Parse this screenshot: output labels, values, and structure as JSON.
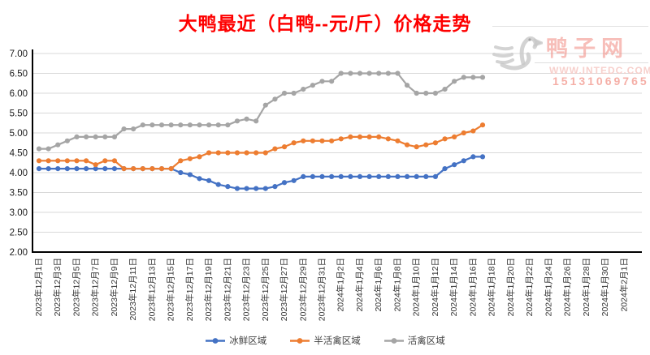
{
  "title": "大鸭最近（白鸭--元/斤）价格走势",
  "watermark": {
    "brand": "鸭子网",
    "url": "WWW.INTEDC.COM",
    "phone": "15131069765",
    "duck_icon": "duck-logo-icon"
  },
  "chart_data": {
    "type": "line",
    "title": "大鸭最近（白鸭--元/斤）价格走势",
    "ylim": [
      2.0,
      7.0
    ],
    "y_ticks": [
      "7.00",
      "6.50",
      "6.00",
      "5.50",
      "5.00",
      "4.50",
      "4.00",
      "3.50",
      "3.00",
      "2.50",
      "2.00"
    ],
    "grid": true,
    "gridline_color": "#d9d9d9",
    "axis_color": "#000000",
    "legend_position": "bottom",
    "x_label_every_n_days": 2,
    "days_total": 63,
    "data_days": 48,
    "x_labels": [
      "2023年12月1日",
      "2023年12月3日",
      "2023年12月5日",
      "2023年12月7日",
      "2023年12月9日",
      "2023年12月11日",
      "2023年12月13日",
      "2023年12月15日",
      "2023年12月17日",
      "2023年12月19日",
      "2023年12月21日",
      "2023年12月23日",
      "2023年12月25日",
      "2023年12月27日",
      "2023年12月29日",
      "2023年12月31日",
      "2024年1月2日",
      "2024年1月4日",
      "2024年1月6日",
      "2024年1月8日",
      "2024年1月10日",
      "2024年1月12日",
      "2024年1月14日",
      "2024年1月16日",
      "2024年1月18日",
      "2024年1月20日",
      "2024年1月22日",
      "2024年1月24日",
      "2024年1月26日",
      "2024年1月28日",
      "2024年1月30日",
      "2024年2月1日"
    ],
    "series": [
      {
        "name": "冰鲜区域",
        "color": "#4472c4",
        "values": [
          4.1,
          4.1,
          4.1,
          4.1,
          4.1,
          4.1,
          4.1,
          4.1,
          4.1,
          4.1,
          4.1,
          4.1,
          4.1,
          4.1,
          4.1,
          4.0,
          3.95,
          3.85,
          3.8,
          3.7,
          3.65,
          3.6,
          3.6,
          3.6,
          3.6,
          3.65,
          3.75,
          3.8,
          3.9,
          3.9,
          3.9,
          3.9,
          3.9,
          3.9,
          3.9,
          3.9,
          3.9,
          3.9,
          3.9,
          3.9,
          3.9,
          3.9,
          3.9,
          4.1,
          4.2,
          4.3,
          4.4,
          4.4
        ]
      },
      {
        "name": "半活禽区域",
        "color": "#ed7d31",
        "values": [
          4.3,
          4.3,
          4.3,
          4.3,
          4.3,
          4.3,
          4.2,
          4.3,
          4.3,
          4.1,
          4.1,
          4.1,
          4.1,
          4.1,
          4.1,
          4.3,
          4.35,
          4.4,
          4.5,
          4.5,
          4.5,
          4.5,
          4.5,
          4.5,
          4.5,
          4.6,
          4.65,
          4.75,
          4.8,
          4.8,
          4.8,
          4.8,
          4.85,
          4.9,
          4.9,
          4.9,
          4.9,
          4.85,
          4.8,
          4.7,
          4.65,
          4.7,
          4.75,
          4.85,
          4.9,
          5.0,
          5.05,
          5.2
        ]
      },
      {
        "name": "活禽区域",
        "color": "#a5a5a5",
        "values": [
          4.6,
          4.6,
          4.7,
          4.8,
          4.9,
          4.9,
          4.9,
          4.9,
          4.9,
          5.1,
          5.1,
          5.2,
          5.2,
          5.2,
          5.2,
          5.2,
          5.2,
          5.2,
          5.2,
          5.2,
          5.2,
          5.3,
          5.35,
          5.3,
          5.7,
          5.85,
          6.0,
          6.0,
          6.1,
          6.2,
          6.3,
          6.3,
          6.5,
          6.5,
          6.5,
          6.5,
          6.5,
          6.5,
          6.5,
          6.2,
          6.0,
          6.0,
          6.0,
          6.1,
          6.3,
          6.4,
          6.4,
          6.4
        ]
      }
    ]
  }
}
